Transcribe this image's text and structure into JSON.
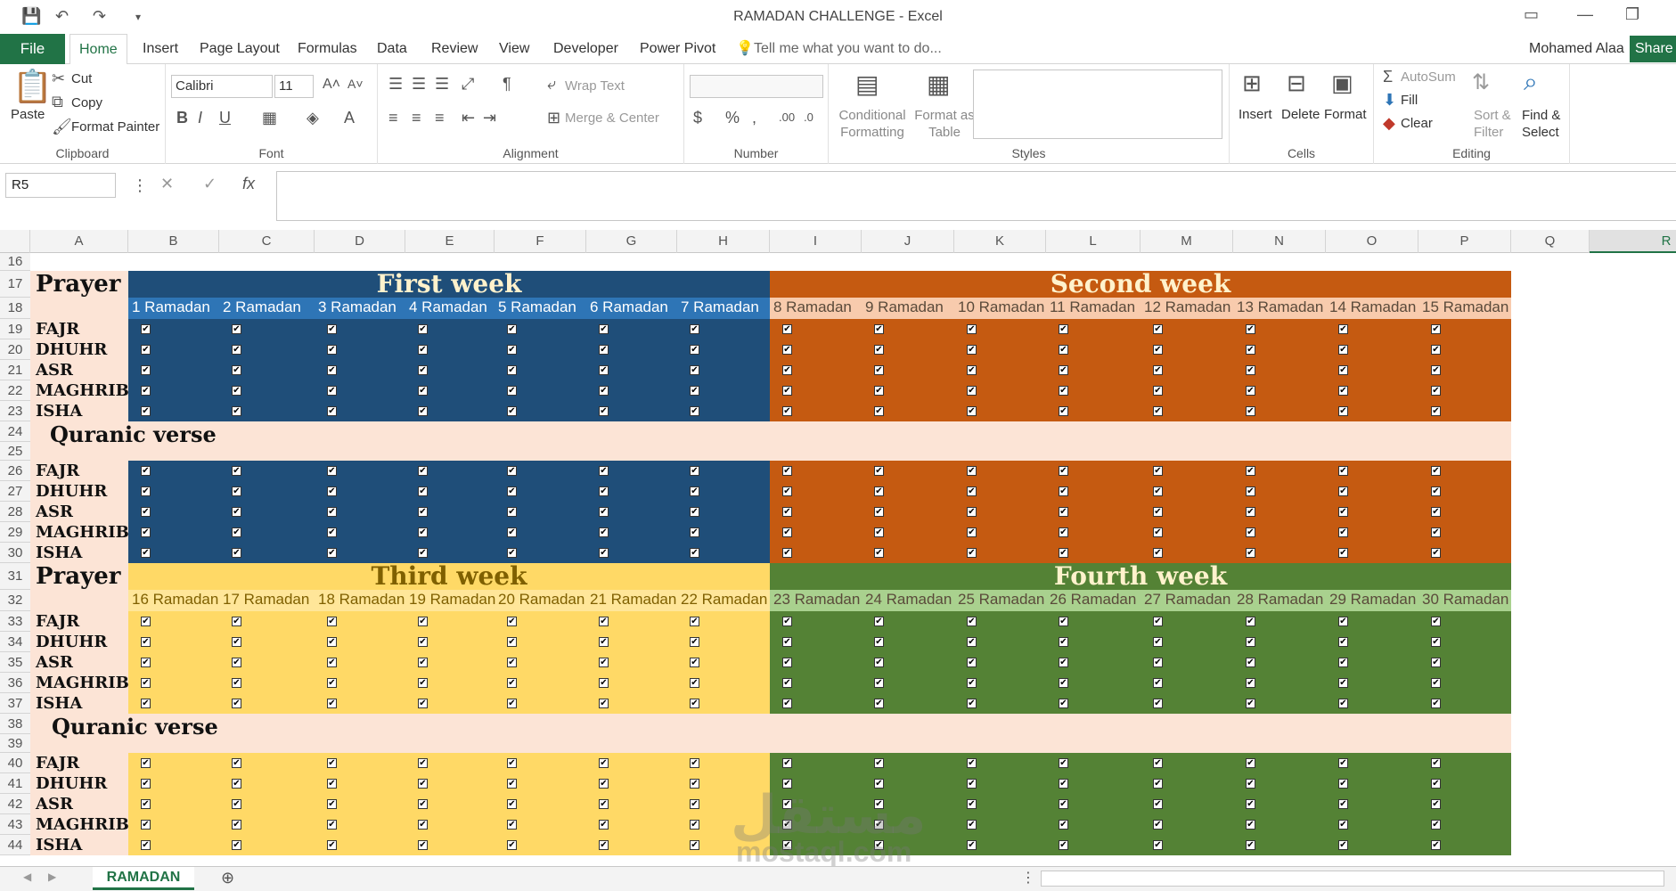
{
  "window": {
    "title": "RAMADAN CHALLENGE - Excel",
    "user": "Mohamed Alaa",
    "share": "Share"
  },
  "tabs": [
    "File",
    "Home",
    "Insert",
    "Page Layout",
    "Formulas",
    "Data",
    "Review",
    "View",
    "Developer",
    "Power Pivot"
  ],
  "tell_me": "Tell me what you want to do...",
  "ribbon": {
    "clipboard": {
      "paste": "Paste",
      "cut": "Cut",
      "copy": "Copy",
      "format_painter": "Format Painter",
      "label": "Clipboard"
    },
    "font": {
      "name": "Calibri",
      "size": "11",
      "label": "Font"
    },
    "alignment": {
      "wrap": "Wrap Text",
      "merge": "Merge & Center",
      "label": "Alignment"
    },
    "number": {
      "label": "Number"
    },
    "styles": {
      "cond": "Conditional Formatting",
      "table": "Format as Table",
      "label": "Styles"
    },
    "cells": {
      "insert": "Insert",
      "delete": "Delete",
      "format": "Format",
      "label": "Cells"
    },
    "editing": {
      "autosum": "AutoSum",
      "fill": "Fill",
      "clear": "Clear",
      "sort": "Sort & Filter",
      "find": "Find & Select",
      "label": "Editing"
    }
  },
  "namebox": "R5",
  "columns": [
    "A",
    "B",
    "C",
    "D",
    "E",
    "F",
    "G",
    "H",
    "I",
    "J",
    "K",
    "L",
    "M",
    "N",
    "O",
    "P",
    "Q",
    "R"
  ],
  "rows": [
    "16",
    "17",
    "18",
    "19",
    "20",
    "21",
    "22",
    "23",
    "24",
    "25",
    "26",
    "27",
    "28",
    "29",
    "30",
    "31",
    "32",
    "33",
    "34",
    "35",
    "36",
    "37",
    "38",
    "39",
    "40",
    "41",
    "42",
    "43",
    "44"
  ],
  "sections": {
    "prayer": "Prayer",
    "quranic": "Quranic verse"
  },
  "prayers": [
    "FAJR",
    "DHUHR",
    "ASR",
    "MAGHRIB",
    "ISHA"
  ],
  "weeks": [
    {
      "title": "First week",
      "days": [
        "1 Ramadan",
        "2 Ramadan",
        "3 Ramadan",
        "4 Ramadan",
        "5 Ramadan",
        "6 Ramadan",
        "7 Ramadan"
      ],
      "color": "#1f4e79",
      "dayband": "#2e75b6",
      "text": "#ffffff"
    },
    {
      "title": "Second week",
      "days": [
        "8 Ramadan",
        "9 Ramadan",
        "10 Ramadan",
        "11 Ramadan",
        "12 Ramadan",
        "13 Ramadan",
        "14 Ramadan",
        "15 Ramadan"
      ],
      "color": "#c55a11",
      "dayband": "#f8cbad",
      "text": "#ffffff"
    },
    {
      "title": "Third week",
      "days": [
        "16 Ramadan",
        "17 Ramadan",
        "18 Ramadan",
        "19 Ramadan",
        "20 Ramadan",
        "21 Ramadan",
        "22 Ramadan"
      ],
      "color": "#ffd966",
      "dayband": "#ffe699",
      "text": "#7f6000"
    },
    {
      "title": "Fourth week",
      "days": [
        "23 Ramadan",
        "24 Ramadan",
        "25 Ramadan",
        "26 Ramadan",
        "27 Ramadan",
        "28 Ramadan",
        "29 Ramadan",
        "30 Ramadan"
      ],
      "color": "#548235",
      "dayband": "#a9d18e",
      "text": "#ffffff"
    }
  ],
  "sheet_tab": "RAMADAN",
  "watermark": "مستقل",
  "watermark_latin": "mostaql.com"
}
